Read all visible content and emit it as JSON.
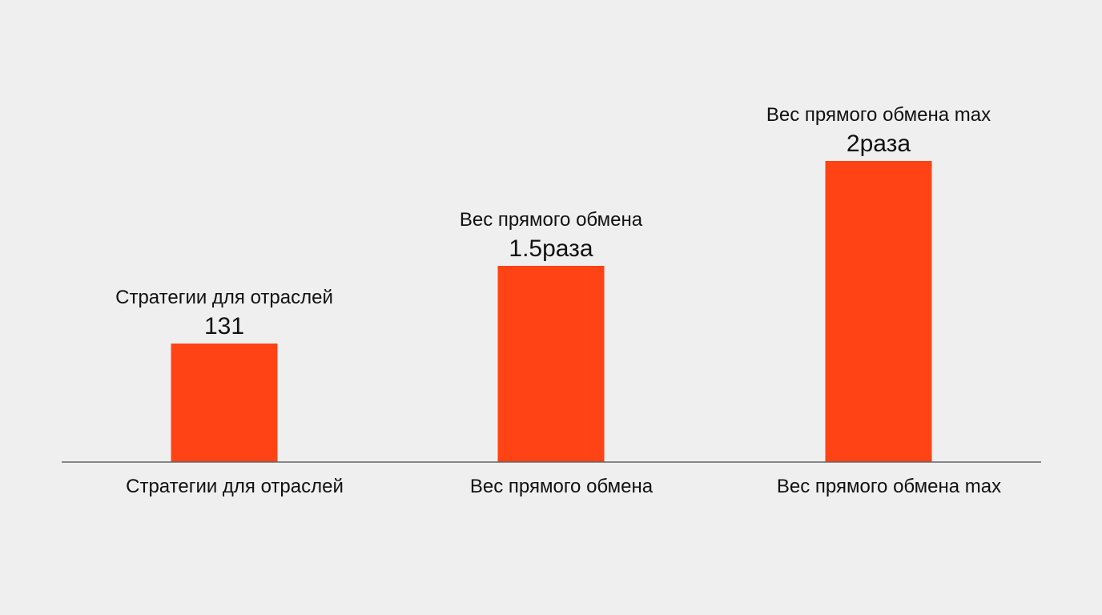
{
  "chart_data": {
    "type": "bar",
    "categories": [
      "Стратегии для отраслей",
      "Вес прямого обмена",
      "Вес прямого обмена max"
    ],
    "values": [
      131,
      1.5,
      2
    ],
    "data_labels": [
      {
        "name": "Стратегии для отраслей",
        "value": "131"
      },
      {
        "name": "Вес прямого обмена",
        "value": "1.5раза"
      },
      {
        "name": "Вес прямого обмена max",
        "value": "2раза"
      }
    ],
    "bar_color": "#ff4314",
    "axis_color": "#666666",
    "title": "",
    "xlabel": "",
    "ylabel": "",
    "grid": false,
    "legend": "none"
  }
}
